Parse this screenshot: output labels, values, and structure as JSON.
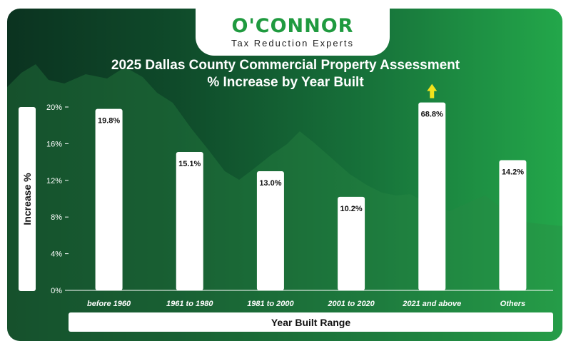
{
  "brand": {
    "name": "O'CONNOR",
    "tagline": "Tax Reduction Experts"
  },
  "colors": {
    "brand_green": "#1f9a3f",
    "arrow_yellow": "#f2e21c"
  },
  "chart_data": {
    "type": "bar",
    "title": "2025 Dallas County Commercial Property Assessment",
    "subtitle": "% Increase by Year Built",
    "xlabel": "Year Built Range",
    "ylabel": "Increase %",
    "categories": [
      "before 1960",
      "1961 to 1980",
      "1981 to 2000",
      "2001 to 2020",
      "2021 and above",
      "Others"
    ],
    "values": [
      19.8,
      15.1,
      13.0,
      10.2,
      68.8,
      14.2
    ],
    "value_labels": [
      "19.8%",
      "15.1%",
      "13.0%",
      "10.2%",
      "68.8%",
      "14.2%"
    ],
    "off_scale": [
      false,
      false,
      false,
      false,
      true,
      false
    ],
    "yticks": [
      "0%",
      "4%",
      "8%",
      "12%",
      "16%",
      "20%"
    ],
    "ytick_values": [
      0,
      4,
      8,
      12,
      16,
      20
    ],
    "ylim": [
      0,
      20
    ],
    "grid": false,
    "legend": "none"
  }
}
